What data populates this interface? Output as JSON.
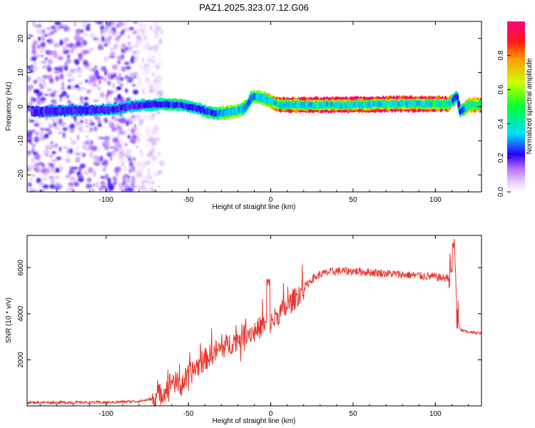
{
  "title": "PAZ1.2025.323.07.12.G06",
  "colors": {
    "snr_line": "#e8352e",
    "spectrum_base": "#a040ff",
    "axis": "#000000"
  },
  "chart_data": [
    {
      "type": "heatmap",
      "name": "spectrogram",
      "xlabel": "Height of straight line (km)",
      "ylabel": "Frequency (Hz)",
      "xlim": [
        -148,
        128
      ],
      "ylim": [
        -25,
        25
      ],
      "x_ticks": [
        -100,
        -50,
        0,
        50,
        100
      ],
      "y_ticks": [
        -20,
        -10,
        0,
        10,
        20
      ],
      "tone_track": {
        "x": [
          -145,
          -130,
          -110,
          -95,
          -85,
          -75,
          -65,
          -55,
          -45,
          -38,
          -33,
          -28,
          -22,
          -17,
          -14,
          -12,
          -10,
          -5,
          0,
          5,
          10,
          20,
          40,
          60,
          80,
          100,
          108,
          111,
          113,
          115,
          120,
          128
        ],
        "freq": [
          -1.5,
          -1.3,
          -1.0,
          -0.8,
          0.2,
          0.5,
          0.8,
          0.5,
          -0.5,
          -1.5,
          -2.0,
          -1.8,
          -1.2,
          -0.8,
          0.5,
          2.5,
          3.0,
          2.5,
          1.5,
          0.5,
          0.5,
          0.5,
          0.5,
          0.6,
          0.8,
          0.8,
          0.8,
          2.0,
          3.5,
          -1.5,
          0.5,
          0.5
        ],
        "amplitude": [
          0.25,
          0.3,
          0.3,
          0.35,
          0.35,
          0.4,
          0.45,
          0.45,
          0.4,
          0.45,
          0.5,
          0.6,
          0.65,
          0.6,
          0.55,
          0.5,
          0.55,
          0.6,
          0.7,
          0.8,
          0.85,
          0.9,
          0.95,
          0.95,
          0.95,
          0.92,
          0.8,
          0.5,
          0.45,
          0.4,
          0.75,
          0.8
        ]
      },
      "noise_region_x": [
        -148,
        -72
      ],
      "colorbar": {
        "label": "Normalized spectral amplitude",
        "range": [
          0.0,
          1.0
        ],
        "ticks": [
          0.0,
          0.2,
          0.4,
          0.6,
          0.8
        ]
      }
    },
    {
      "type": "line",
      "name": "snr",
      "xlabel": "Height of straight line (km)",
      "ylabel": "SNR (10 * v/v)",
      "xlim": [
        -148,
        128
      ],
      "ylim": [
        0,
        7400
      ],
      "x_ticks": [
        -100,
        -50,
        0,
        50,
        100
      ],
      "y_ticks": [
        2000,
        4000,
        6000
      ],
      "series": [
        {
          "name": "SNR",
          "x": [
            -148,
            -120,
            -100,
            -80,
            -72,
            -65,
            -60,
            -55,
            -50,
            -45,
            -40,
            -35,
            -30,
            -25,
            -20,
            -15,
            -10,
            -5,
            0,
            5,
            10,
            15,
            20,
            25,
            30,
            35,
            40,
            50,
            60,
            70,
            80,
            90,
            100,
            105,
            108,
            110,
            111,
            112,
            113,
            115,
            120,
            128
          ],
          "values": [
            150,
            150,
            150,
            200,
            300,
            600,
            1100,
            900,
            1300,
            1700,
            2000,
            2300,
            2500,
            2700,
            2900,
            3200,
            3200,
            3500,
            3600,
            4000,
            4300,
            4700,
            5100,
            5500,
            5700,
            5800,
            5850,
            5850,
            5800,
            5750,
            5700,
            5650,
            5600,
            5550,
            5600,
            6000,
            7000,
            6500,
            4000,
            3300,
            3200,
            3150
          ],
          "color": "#e8352e"
        }
      ]
    }
  ]
}
